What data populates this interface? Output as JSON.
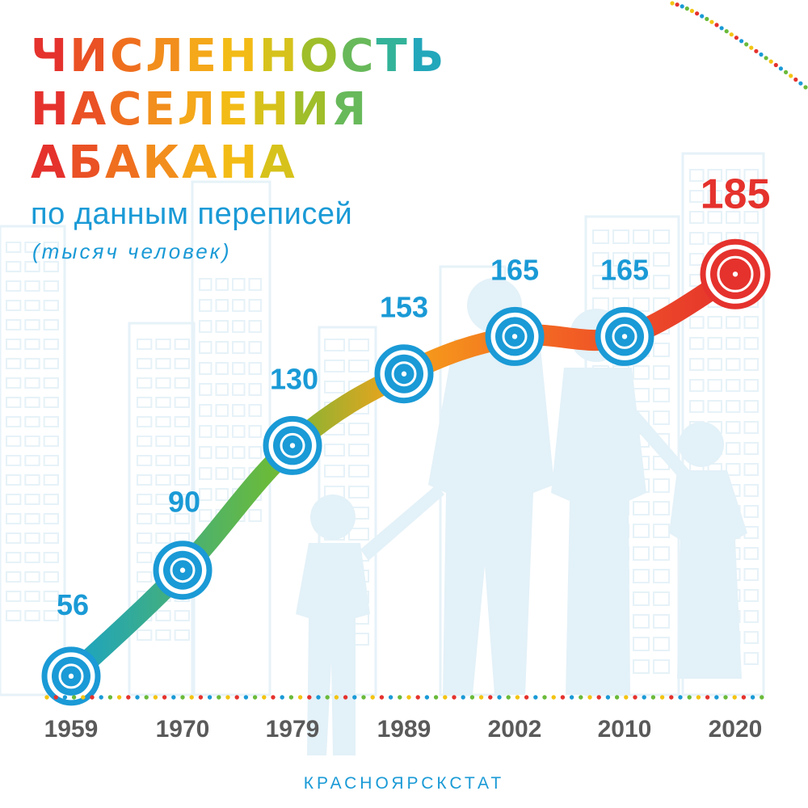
{
  "title_lines": [
    "ЧИСЛЕННОСТЬ",
    "НАСЕЛЕНИЯ",
    "АБАКАНА"
  ],
  "subtitle": "по данным переписей",
  "unit_label": "(тысяч человек)",
  "source": "КРАСНОЯРСКСТАТ",
  "colors": {
    "blue": "#1a9ad6",
    "red": "#e5322d",
    "year_label": "#5a5a5a",
    "background_shapes": "#e6f2f8",
    "title_gradient": [
      "#e5322d",
      "#ee6a1f",
      "#f4a21c",
      "#f3c413",
      "#8cbd2f",
      "#2ab2a4",
      "#1a9ad6"
    ],
    "line_gradient": [
      "#1aa3c5",
      "#6aba3a",
      "#f6a11a",
      "#f25f24",
      "#e5322d"
    ],
    "dots": [
      "#f3c413",
      "#e5322d",
      "#1a9ad6",
      "#6aba3a"
    ]
  },
  "chart_data": {
    "type": "line",
    "title": "ЧИСЛЕННОСТЬ НАСЕЛЕНИЯ АБАКАНА",
    "subtitle": "по данным переписей",
    "ylabel": "(тысяч человек)",
    "categories": [
      "1959",
      "1970",
      "1979",
      "1989",
      "2002",
      "2010",
      "2020"
    ],
    "series": [
      {
        "values": [
          56,
          90,
          130,
          153,
          165,
          165,
          185
        ]
      }
    ],
    "data_labels": [
      "56",
      "90",
      "130",
      "153",
      "165",
      "165",
      "185"
    ],
    "ylim": [
      50,
      190
    ],
    "grid": false,
    "legend": "none",
    "highlight_last": true
  }
}
